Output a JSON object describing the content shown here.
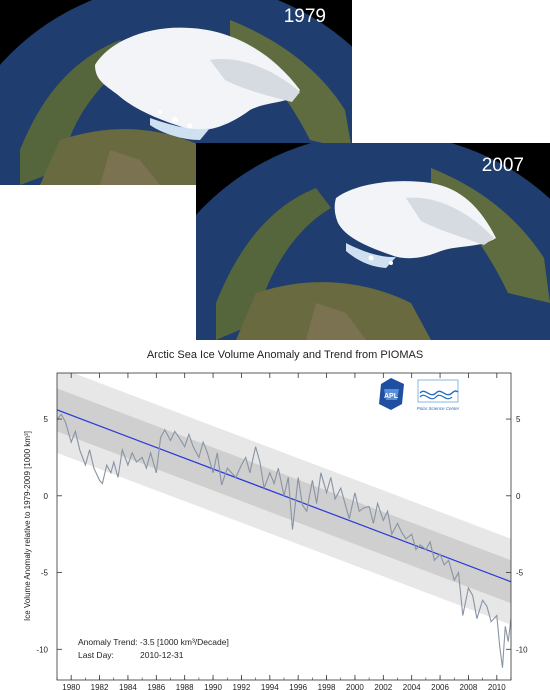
{
  "photos": [
    {
      "year": "1979"
    },
    {
      "year": "2007"
    }
  ],
  "logos": {
    "apl": "APL",
    "psc_text": "Polar Science Center"
  },
  "colors": {
    "ocean": "#1e3c6c",
    "land": "#5d6b3e",
    "ice": "#f2f4f7",
    "anomaly_line": "#8894a4",
    "trend_line": "#2a37d6",
    "band_outer": "#e7e7e7",
    "band_inner": "#cfcfcf"
  },
  "chart_data": {
    "type": "line",
    "title": "Arctic Sea Ice Volume Anomaly and Trend from PIOMAS",
    "ylabel": "Ice Volume Anomaly relative to 1979-2009 [1000 km³]",
    "xlabel": "",
    "xlim": [
      1979,
      2011
    ],
    "ylim": [
      -12,
      8
    ],
    "x_ticks": [
      "1980",
      "1982",
      "1984",
      "1986",
      "1988",
      "1990",
      "1992",
      "1994",
      "1996",
      "1998",
      "2000",
      "2002",
      "2004",
      "2006",
      "2008",
      "2010"
    ],
    "y_ticks": [
      "5",
      "0",
      "-5",
      "-10"
    ],
    "trend": {
      "x": [
        1979,
        2011
      ],
      "y": [
        5.6,
        -5.6
      ]
    },
    "bands": [
      {
        "name": "outer",
        "half_width": 2.8
      },
      {
        "name": "inner",
        "half_width": 1.4
      }
    ],
    "annotations": [
      {
        "label": "Anomaly Trend:",
        "value": "-3.5 [1000 km³/Decade]"
      },
      {
        "label": "Last Day:",
        "value": "2010-12-31"
      }
    ],
    "series": [
      {
        "x": [
          1979.0,
          1979.3,
          1979.6,
          1980.0,
          1980.3,
          1980.6,
          1981.0,
          1981.3,
          1981.6,
          1982.0,
          1982.2,
          1982.5,
          1982.8,
          1983.0,
          1983.3,
          1983.6,
          1984.0,
          1984.3,
          1984.6,
          1985.0,
          1985.3,
          1985.6,
          1986.0,
          1986.3,
          1986.6,
          1987.0,
          1987.3,
          1987.6,
          1988.0,
          1988.3,
          1988.6,
          1989.0,
          1989.3,
          1989.6,
          1990.0,
          1990.3,
          1990.6,
          1991.0,
          1991.3,
          1991.6,
          1992.0,
          1992.3,
          1992.6,
          1993.0,
          1993.3,
          1993.6,
          1994.0,
          1994.3,
          1994.6,
          1995.0,
          1995.3,
          1995.6,
          1996.0,
          1996.3,
          1996.6,
          1997.0,
          1997.3,
          1997.6,
          1998.0,
          1998.3,
          1998.6,
          1999.0,
          1999.3,
          1999.6,
          2000.0,
          2000.3,
          2000.6,
          2001.0,
          2001.3,
          2001.6,
          2002.0,
          2002.3,
          2002.6,
          2003.0,
          2003.3,
          2003.6,
          2004.0,
          2004.3,
          2004.6,
          2005.0,
          2005.3,
          2005.6,
          2006.0,
          2006.3,
          2006.6,
          2007.0,
          2007.3,
          2007.6,
          2008.0,
          2008.3,
          2008.6,
          2009.0,
          2009.3,
          2009.6,
          2010.0,
          2010.2,
          2010.4,
          2010.6,
          2010.8,
          2011.0
        ],
        "y": [
          5.0,
          5.3,
          4.8,
          3.5,
          4.2,
          3.0,
          2.0,
          3.0,
          1.8,
          1.0,
          0.8,
          2.0,
          1.5,
          2.2,
          1.2,
          3.0,
          2.0,
          2.8,
          2.2,
          2.5,
          1.8,
          2.8,
          1.5,
          3.8,
          4.3,
          3.6,
          4.2,
          3.8,
          3.2,
          4.0,
          3.2,
          2.5,
          3.5,
          2.8,
          1.5,
          2.8,
          0.7,
          1.8,
          1.5,
          1.2,
          2.0,
          2.5,
          1.5,
          3.2,
          2.2,
          0.5,
          1.5,
          0.8,
          1.8,
          0.0,
          1.2,
          -2.2,
          1.2,
          -0.6,
          -1.0,
          1.0,
          -0.5,
          1.5,
          0.2,
          1.2,
          -0.2,
          0.5,
          -0.5,
          -1.5,
          0.2,
          -1.0,
          -0.8,
          -0.7,
          -1.8,
          -0.5,
          -1.6,
          -1.0,
          -2.5,
          -1.8,
          -2.4,
          -2.8,
          -2.5,
          -3.5,
          -3.2,
          -3.5,
          -3.0,
          -4.2,
          -3.8,
          -4.5,
          -4.2,
          -5.5,
          -5.0,
          -7.8,
          -6.0,
          -6.5,
          -8.0,
          -6.8,
          -7.2,
          -8.2,
          -7.8,
          -9.8,
          -11.2,
          -8.5,
          -9.5,
          -8.0
        ]
      }
    ]
  }
}
